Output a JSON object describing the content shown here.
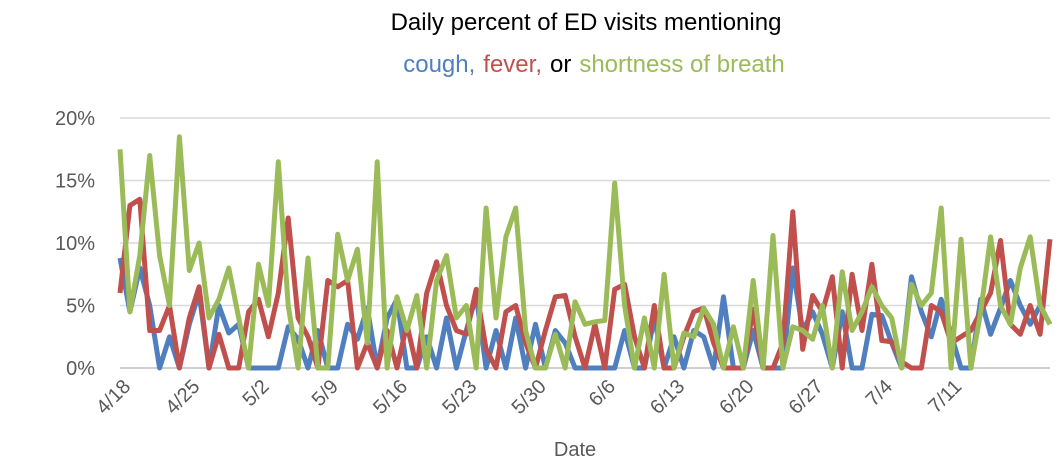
{
  "chart_data": {
    "type": "line",
    "title": "Daily percent of ED visits mentioning",
    "subtitle_connector": "or",
    "x_label": "Date",
    "categories": [
      "4/18",
      null,
      null,
      null,
      null,
      null,
      null,
      "4/25",
      null,
      null,
      null,
      null,
      null,
      null,
      "5/2",
      null,
      null,
      null,
      null,
      null,
      null,
      "5/9",
      null,
      null,
      null,
      null,
      null,
      null,
      "5/16",
      null,
      null,
      null,
      null,
      null,
      null,
      "5/23",
      null,
      null,
      null,
      null,
      null,
      null,
      "5/30",
      null,
      null,
      null,
      null,
      null,
      null,
      "6/6",
      null,
      null,
      null,
      null,
      null,
      null,
      "6/13",
      null,
      null,
      null,
      null,
      null,
      null,
      "6/20",
      null,
      null,
      null,
      null,
      null,
      null,
      "6/27",
      null,
      null,
      null,
      null,
      null,
      null,
      "7/4",
      null,
      null,
      null,
      null,
      null,
      null,
      "7/11",
      null,
      null,
      null,
      null,
      null,
      null,
      null,
      null,
      null,
      null
    ],
    "series": [
      {
        "name": "cough,",
        "color": "#4f7fbf",
        "values": [
          8.8,
          4.5,
          8,
          5,
          0,
          2.5,
          0,
          3.5,
          6,
          0,
          5,
          2.8,
          3.5,
          0,
          0,
          0,
          0,
          3.3,
          2.3,
          0,
          3,
          0,
          0,
          3.5,
          2.3,
          4.8,
          0,
          4,
          5.5,
          0,
          0,
          2.5,
          0,
          4,
          0,
          3,
          5.8,
          0,
          3,
          0,
          4,
          0,
          3.5,
          0,
          3,
          2,
          0,
          0,
          0,
          0,
          0,
          3,
          0,
          0,
          4,
          0,
          2.5,
          0,
          3,
          2.5,
          0,
          5.7,
          0,
          0,
          3,
          0,
          0,
          0,
          8,
          3,
          4.5,
          2.7,
          0,
          4.5,
          0,
          0,
          4.3,
          4.2,
          2,
          0,
          7.3,
          4.5,
          2.5,
          5.5,
          2.7,
          0,
          0,
          5.5,
          2.7,
          4.8,
          7,
          5,
          3.5,
          5,
          3.5
        ]
      },
      {
        "name": "fever,",
        "color": "#c0504d",
        "values": [
          6,
          13,
          13.5,
          3,
          3,
          5,
          0,
          4,
          6.5,
          0,
          2.7,
          0,
          0,
          4.5,
          5.5,
          2.5,
          6,
          12,
          4,
          2.5,
          0,
          7,
          6.5,
          7,
          0,
          2,
          0,
          3,
          0,
          3.5,
          0,
          6,
          8.5,
          5,
          3,
          2.7,
          6.3,
          1.5,
          0,
          4.5,
          5,
          2,
          0,
          3,
          5.7,
          5.8,
          2.5,
          0,
          3.5,
          0,
          6.3,
          6.7,
          2.5,
          0,
          5,
          0,
          0,
          2.5,
          4.5,
          4.8,
          2,
          0,
          0,
          0,
          4.7,
          0,
          0,
          2,
          12.5,
          1.5,
          5.8,
          4.5,
          7.3,
          0,
          7.5,
          3,
          8.3,
          2.2,
          2.1,
          0.5,
          0,
          0,
          5,
          4.5,
          2,
          2.5,
          3,
          4.5,
          6,
          10.2,
          3.5,
          2.7,
          5,
          2.7,
          10.3
        ]
      },
      {
        "name": "shortness of breath",
        "color": "#9bbb59",
        "values": [
          17.5,
          4.5,
          9,
          17,
          9,
          5,
          18.5,
          7.8,
          10,
          4,
          5.5,
          8,
          4,
          0,
          8.3,
          5,
          16.5,
          5,
          0,
          8.8,
          0,
          0,
          10.7,
          7,
          9.5,
          2,
          16.5,
          0,
          5.7,
          3,
          5.8,
          0,
          7,
          9,
          4,
          5,
          0,
          12.8,
          4,
          10.5,
          12.8,
          3,
          0,
          0,
          2.7,
          0,
          5.3,
          3.5,
          3.7,
          3.8,
          14.8,
          5,
          0,
          4,
          0,
          7.5,
          0,
          2.8,
          2.5,
          4.8,
          3.5,
          0,
          3.3,
          0,
          7,
          0,
          10.6,
          0,
          3.3,
          3,
          2.3,
          5,
          0,
          7.7,
          3,
          4.5,
          6.5,
          5,
          4,
          0,
          6.7,
          5,
          6,
          12.8,
          0,
          10.3,
          0,
          4.5,
          10.5,
          5,
          3.5,
          8,
          10.5,
          5,
          3.5
        ]
      }
    ],
    "ylim": [
      0,
      20
    ],
    "yticks": [
      {
        "value": 0,
        "label": "0%"
      },
      {
        "value": 5,
        "label": "5%"
      },
      {
        "value": 10,
        "label": "10%"
      },
      {
        "value": 15,
        "label": "15%"
      },
      {
        "value": 20,
        "label": "20%"
      }
    ],
    "grid": true
  }
}
